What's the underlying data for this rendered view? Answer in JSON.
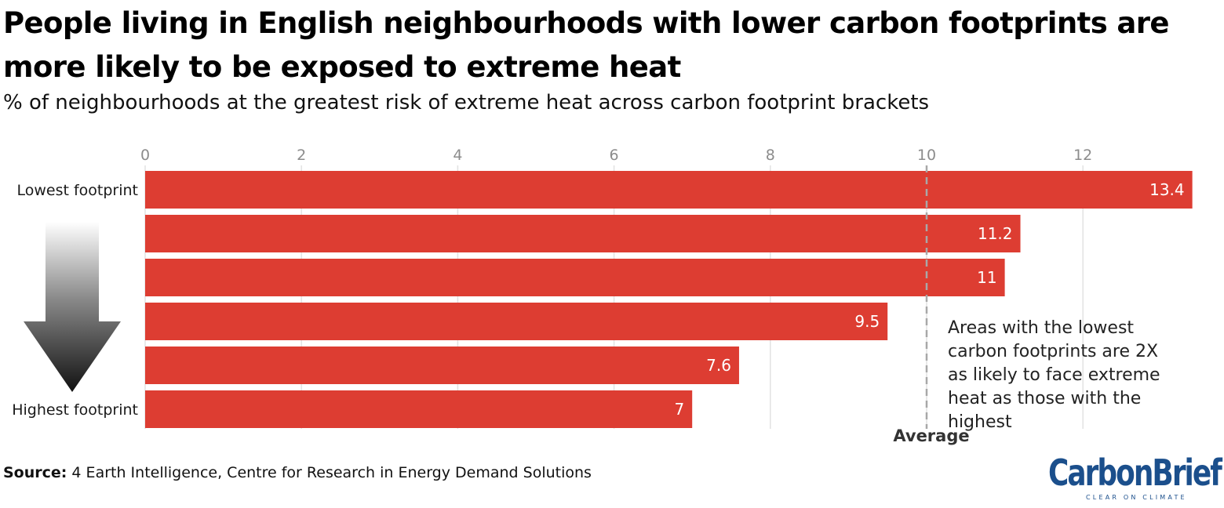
{
  "chart_data": {
    "type": "bar",
    "orientation": "horizontal",
    "title": "People living in English neighbourhoods with lower carbon footprints are more likely to be exposed to extreme heat",
    "subtitle": "% of neighbourhoods at the greatest risk of extreme heat across carbon footprint brackets",
    "categories": [
      "Lowest footprint",
      "",
      "",
      "",
      "",
      "Highest footprint"
    ],
    "values": [
      13.4,
      11.2,
      11,
      9.5,
      7.6,
      7
    ],
    "value_labels": [
      "13.4",
      "11.2",
      "11",
      "9.5",
      "7.6",
      "7"
    ],
    "xlim": [
      0,
      13.4
    ],
    "xticks": [
      0,
      2,
      4,
      6,
      8,
      10,
      12
    ],
    "grid": true,
    "bar_color": "#dd3d32",
    "average": {
      "value": 10,
      "label": "Average"
    },
    "annotation": "Areas with the lowest carbon footprints are 2X as likely to face extreme heat as those with the highest",
    "arrow": {
      "direction": "down",
      "from": "Lowest footprint",
      "to": "Highest footprint"
    }
  },
  "footer": {
    "source_label": "Source:",
    "source_text": " 4 Earth Intelligence, Centre for Research in Energy Demand Solutions"
  },
  "logo": {
    "name": "CarbonBrief",
    "tagline": "CLEAR ON CLIMATE",
    "color": "#1b4f8c"
  }
}
